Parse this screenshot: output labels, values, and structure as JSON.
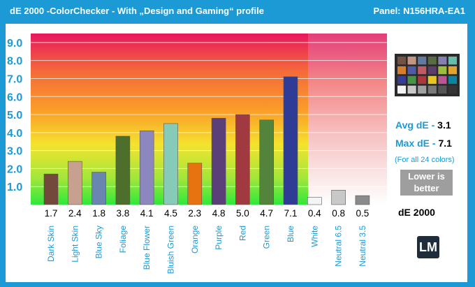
{
  "header": {
    "title": "dE 2000 -ColorChecker - With „Design and Gaming“ profile",
    "panel": "Panel: N156HRA-EA1"
  },
  "side": {
    "avg_label": "Avg dE - ",
    "avg_value": "3.1",
    "max_label": "Max dE - ",
    "max_value": "7.1",
    "note": "(For all 24 colors)",
    "lower_line1": "Lower is",
    "lower_line2": "better",
    "metric": "dE 2000",
    "logo": "LM"
  },
  "colors": {
    "frame": "#1c9ad6",
    "lower_box": "#9e9e9e",
    "logo_box": "#1f2d3a"
  },
  "chart_data": {
    "type": "bar",
    "categories": [
      "Dark Skin",
      "Light Skin",
      "Blue Sky",
      "Foliage",
      "Blue Flower",
      "Bluish Green",
      "Orange",
      "Purple",
      "Red",
      "Green",
      "Blue",
      "White",
      "Neutral 6.5",
      "Neutral 3.5"
    ],
    "values": [
      1.7,
      2.4,
      1.8,
      3.8,
      4.1,
      4.5,
      2.3,
      4.8,
      5.0,
      4.7,
      7.1,
      0.4,
      0.8,
      0.5
    ],
    "value_labels": [
      "1.7",
      "2.4",
      "1.8",
      "3.8",
      "4.1",
      "4.5",
      "2.3",
      "4.8",
      "5.0",
      "4.7",
      "7.1",
      "0.4",
      "0.8",
      "0.5"
    ],
    "bar_colors": [
      "#72493a",
      "#c7a08f",
      "#6a86b0",
      "#4e6e2c",
      "#8d87c0",
      "#86cbb8",
      "#e6730f",
      "#5b3f78",
      "#a13a40",
      "#54843c",
      "#2f3c96",
      "#f4f4f4",
      "#c8c8c8",
      "#8a8a8a"
    ],
    "y_ticks": [
      1.0,
      2.0,
      3.0,
      4.0,
      5.0,
      6.0,
      7.0,
      8.0,
      9.0
    ],
    "y_tick_labels": [
      "1.0",
      "2.0",
      "3.0",
      "4.0",
      "5.0",
      "6.0",
      "7.0",
      "8.0",
      "9.0"
    ],
    "ylim": [
      0,
      9.5
    ],
    "grid": true,
    "swatch_colors": [
      "#735244",
      "#c29682",
      "#627a9d",
      "#576c43",
      "#8580b1",
      "#67bdaa",
      "#d67e2c",
      "#505ba6",
      "#c15a63",
      "#5e3c6c",
      "#9dbc40",
      "#e0a32e",
      "#383d96",
      "#469449",
      "#af363c",
      "#e7c71f",
      "#bb5695",
      "#0885a1",
      "#f3f3f2",
      "#c8c8c8",
      "#a0a0a0",
      "#7a7a79",
      "#555555",
      "#343434"
    ]
  }
}
